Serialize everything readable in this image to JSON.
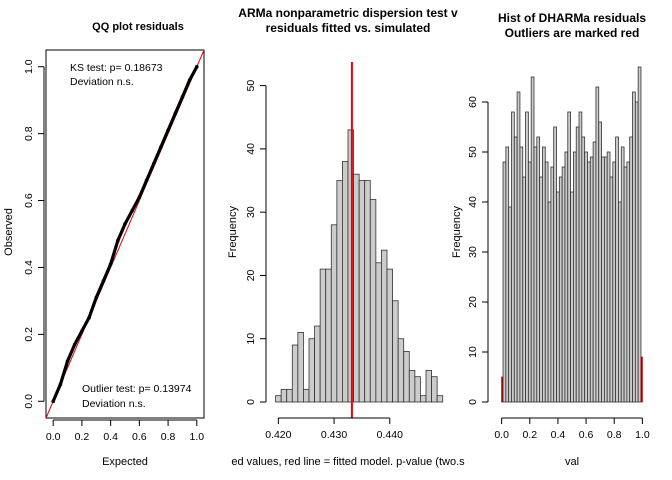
{
  "colors": {
    "background": "#ffffff",
    "qq_points": "#000000",
    "reference_line": "#e8000b",
    "histogram_fill": "#cccccc",
    "histogram_stroke": "#333333",
    "outlier_fill": "#b40000"
  },
  "chart_data": [
    {
      "type": "scatter",
      "title": "QQ plot residuals",
      "xlabel": "Expected",
      "ylabel": "Observed",
      "xlim": [
        -0.05,
        1.05
      ],
      "ylim": [
        -0.05,
        1.05
      ],
      "xticks": [
        "0.0",
        "0.2",
        "0.4",
        "0.6",
        "0.8",
        "1.0"
      ],
      "yticks": [
        "0.0",
        "0.2",
        "0.4",
        "0.6",
        "0.8",
        "1.0"
      ],
      "points": [
        [
          0.0,
          0.0
        ],
        [
          0.05,
          0.05
        ],
        [
          0.1,
          0.12
        ],
        [
          0.15,
          0.17
        ],
        [
          0.2,
          0.21
        ],
        [
          0.25,
          0.25
        ],
        [
          0.3,
          0.31
        ],
        [
          0.35,
          0.36
        ],
        [
          0.4,
          0.41
        ],
        [
          0.45,
          0.48
        ],
        [
          0.5,
          0.53
        ],
        [
          0.55,
          0.57
        ],
        [
          0.6,
          0.61
        ],
        [
          0.65,
          0.66
        ],
        [
          0.7,
          0.71
        ],
        [
          0.75,
          0.76
        ],
        [
          0.8,
          0.81
        ],
        [
          0.85,
          0.86
        ],
        [
          0.9,
          0.91
        ],
        [
          0.95,
          0.96
        ],
        [
          1.0,
          1.0
        ]
      ],
      "reference_line": {
        "intercept": 0,
        "slope": 1
      },
      "annotations": {
        "ks_test": "KS test: p= 0.18673",
        "ks_deviation": "Deviation  n.s.",
        "outlier_test": "Outlier test: p= 0.13974",
        "outlier_deviation": "Deviation  n.s."
      }
    },
    {
      "type": "bar",
      "title_line1": "ARMa nonparametric dispersion test v",
      "title_line2": "residuals fitted vs. simulated",
      "xlabel": "ed values, red line = fitted model. p-value (two.s",
      "ylabel": "Frequency",
      "xlim": [
        0.4185,
        0.4465
      ],
      "ylim": [
        0,
        57
      ],
      "xticks": [
        "0.420",
        "0.430",
        "0.440"
      ],
      "yticks": [
        "0",
        "10",
        "20",
        "30",
        "40",
        "50"
      ],
      "bin_start": 0.4195,
      "bin_width": 0.001,
      "values": [
        1,
        2,
        2,
        9,
        11,
        2,
        10,
        12,
        21,
        21,
        28,
        35,
        38,
        43,
        36,
        35,
        35,
        32,
        22,
        24,
        21,
        16,
        10,
        8,
        5,
        4,
        1,
        5,
        4,
        1
      ],
      "red_line_x": 0.4332
    },
    {
      "type": "bar",
      "title_line1": "Hist of DHARMa residuals",
      "title_line2": "Outliers are marked red",
      "xlabel": "val",
      "ylabel": "Frequency",
      "xlim": [
        -0.04,
        1.04
      ],
      "ylim": [
        0,
        66
      ],
      "xticks": [
        "0.0",
        "0.2",
        "0.4",
        "0.6",
        "0.8",
        "1.0"
      ],
      "yticks": [
        "0",
        "10",
        "20",
        "30",
        "40",
        "50",
        "60"
      ],
      "bin_width": 0.02,
      "values": [
        5,
        48,
        51,
        39,
        58,
        53,
        62,
        51,
        45,
        58,
        48,
        65,
        51,
        53,
        45,
        51,
        48,
        40,
        47,
        55,
        42,
        45,
        47,
        50,
        58,
        42,
        50,
        55,
        58,
        53,
        50,
        48,
        49,
        52,
        63,
        56,
        49,
        49,
        50,
        45,
        48,
        53,
        40,
        51,
        47,
        48,
        53,
        62,
        60,
        67,
        9
      ],
      "outlier_bins": [
        0,
        50
      ]
    }
  ]
}
